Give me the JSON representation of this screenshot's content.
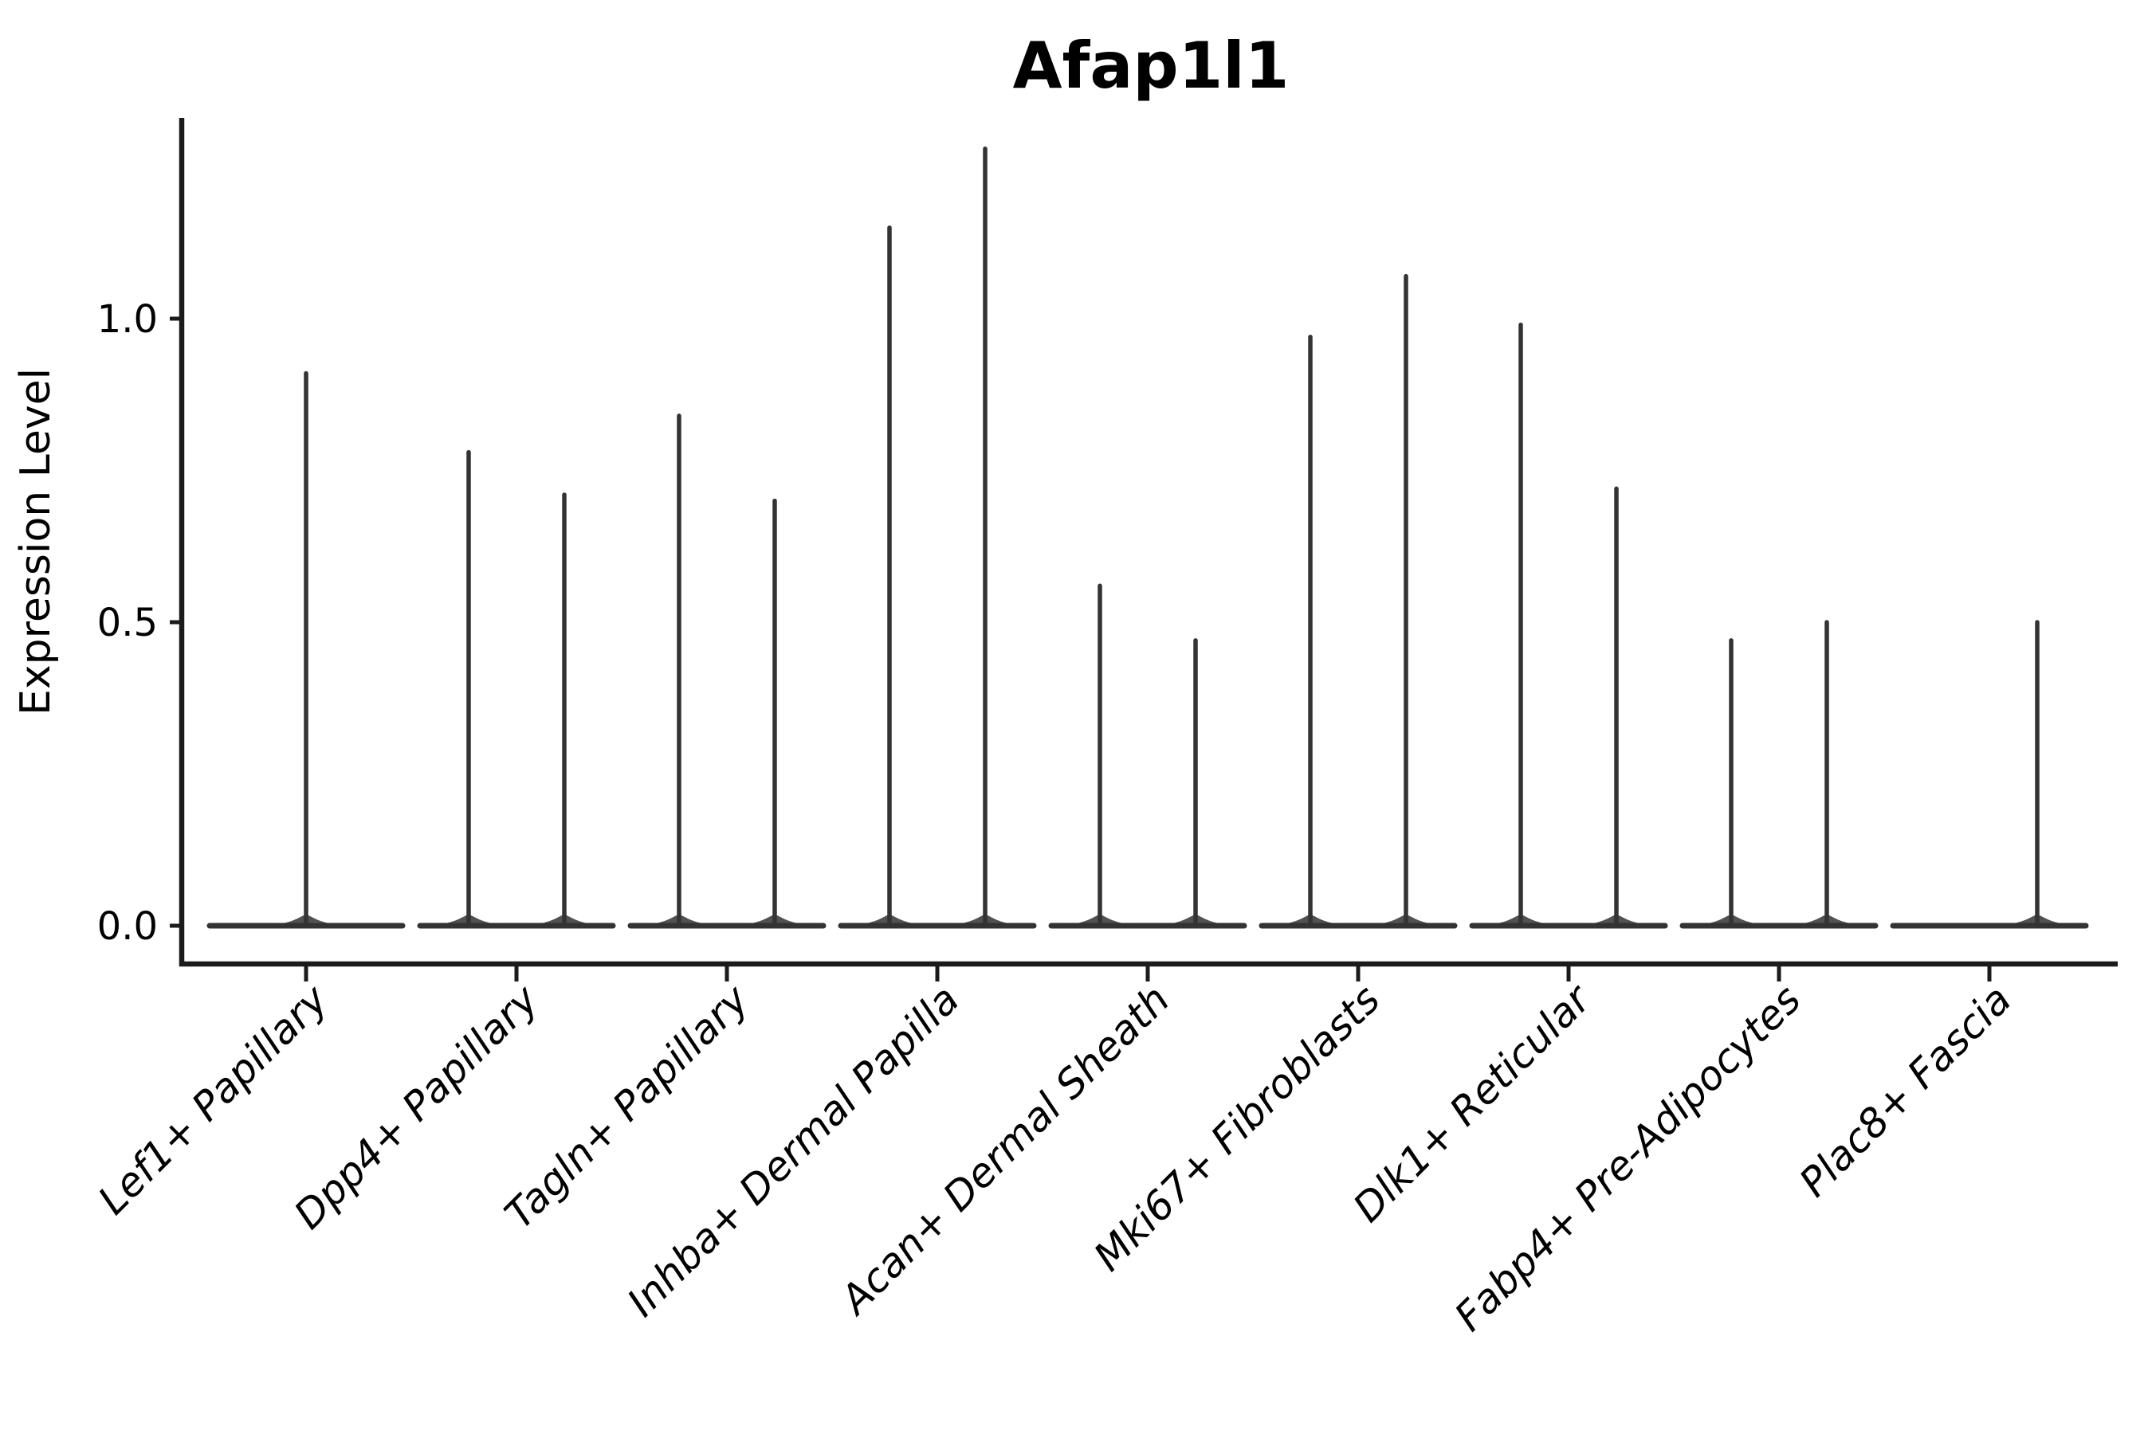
{
  "title": "Afap1l1",
  "y_axis": {
    "label": "Expression Level",
    "tick_labels": [
      "0.0",
      "0.5",
      "1.0"
    ]
  },
  "chart_data": {
    "type": "violin",
    "title": "Afap1l1",
    "ylabel": "Expression Level",
    "xlabel": "",
    "ylim": [
      -0.06,
      1.33
    ],
    "yticks": [
      0.0,
      0.5,
      1.0
    ],
    "grid": false,
    "legend_position": "none",
    "categories": [
      "Lef1+ Papillary",
      "Dpp4+ Papillary",
      "Tagln+ Papillary",
      "Inhba+ Dermal Papilla",
      "Acan+ Dermal Sheath",
      "Mki67+ Fibroblasts",
      "Dlk1+ Reticular",
      "Fabp4+ Pre-Adipocytes",
      "Plac8+ Fascia"
    ],
    "violins": [
      {
        "category": "Lef1+ Papillary",
        "baseline_value": 0.0,
        "spikes": [
          {
            "group": "center",
            "max": 0.91
          }
        ]
      },
      {
        "category": "Dpp4+ Papillary",
        "baseline_value": 0.0,
        "spikes": [
          {
            "group": "left",
            "max": 0.78
          },
          {
            "group": "right",
            "max": 0.71
          }
        ]
      },
      {
        "category": "Tagln+ Papillary",
        "baseline_value": 0.0,
        "spikes": [
          {
            "group": "left",
            "max": 0.84
          },
          {
            "group": "right",
            "max": 0.7
          }
        ]
      },
      {
        "category": "Inhba+ Dermal Papilla",
        "baseline_value": 0.0,
        "spikes": [
          {
            "group": "left",
            "max": 1.15
          },
          {
            "group": "right",
            "max": 1.28
          }
        ]
      },
      {
        "category": "Acan+ Dermal Sheath",
        "baseline_value": 0.0,
        "spikes": [
          {
            "group": "left",
            "max": 0.56
          },
          {
            "group": "right",
            "max": 0.47
          }
        ]
      },
      {
        "category": "Mki67+ Fibroblasts",
        "baseline_value": 0.0,
        "spikes": [
          {
            "group": "left",
            "max": 0.97
          },
          {
            "group": "right",
            "max": 1.07
          }
        ]
      },
      {
        "category": "Dlk1+ Reticular",
        "baseline_value": 0.0,
        "spikes": [
          {
            "group": "left",
            "max": 0.99
          },
          {
            "group": "right",
            "max": 0.72
          }
        ]
      },
      {
        "category": "Fabp4+ Pre-Adipocytes",
        "baseline_value": 0.0,
        "spikes": [
          {
            "group": "left",
            "max": 0.47
          },
          {
            "group": "right",
            "max": 0.5
          }
        ]
      },
      {
        "category": "Plac8+ Fascia",
        "baseline_value": 0.0,
        "spikes": [
          {
            "group": "right",
            "max": 0.5
          }
        ]
      }
    ]
  },
  "colors": {
    "background": "#ffffff",
    "violin_stroke": "#333333",
    "spine": "#1b1b1b",
    "text": "#000000"
  }
}
